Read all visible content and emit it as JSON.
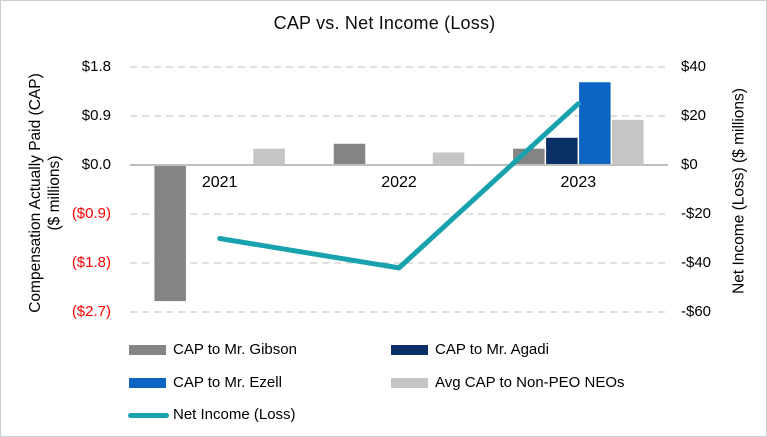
{
  "title": "CAP vs. Net Income (Loss)",
  "left_axis": {
    "title_line1": "Compensation Actually Paid (CAP)",
    "title_line2": "($ millions)",
    "ticks": [
      {
        "label": "$1.8",
        "value": 1.8
      },
      {
        "label": "$0.9",
        "value": 0.9
      },
      {
        "label": "$0.0",
        "value": 0.0
      },
      {
        "label": "($0.9)",
        "value": -0.9
      },
      {
        "label": "($1.8)",
        "value": -1.8
      },
      {
        "label": "($2.7)",
        "value": -2.7
      }
    ]
  },
  "right_axis": {
    "title": "Net Income (Loss) ($ millions)",
    "ticks": [
      {
        "label": "$40",
        "value": 40
      },
      {
        "label": "$20",
        "value": 20
      },
      {
        "label": "$0",
        "value": 0
      },
      {
        "label": "-$20",
        "value": -20
      },
      {
        "label": "-$40",
        "value": -40
      },
      {
        "label": "-$60",
        "value": -60
      }
    ]
  },
  "chart_data": {
    "type": "combo: grouped bar + line, dual y-axes",
    "title": "CAP vs. Net Income (Loss)",
    "categories": [
      "2021",
      "2022",
      "2023"
    ],
    "series": [
      {
        "name": "CAP to Mr. Gibson",
        "type": "bar",
        "axis": "left",
        "color": "#848484",
        "values": [
          -2.5,
          0.39,
          0.3
        ]
      },
      {
        "name": "CAP to Mr. Agadi",
        "type": "bar",
        "axis": "left",
        "color": "#0b3068",
        "values": [
          0,
          0,
          0.5
        ]
      },
      {
        "name": "CAP to Mr. Ezell",
        "type": "bar",
        "axis": "left",
        "color": "#0e64c2",
        "values": [
          0,
          0,
          1.52
        ]
      },
      {
        "name": "Avg CAP to Non-PEO NEOs",
        "type": "bar",
        "axis": "left",
        "color": "#c5c5c5",
        "values": [
          0.3,
          0.23,
          0.83
        ]
      },
      {
        "name": "Net Income (Loss)",
        "type": "line",
        "axis": "right",
        "color": "#18a2ae",
        "values": [
          -30,
          -42,
          25
        ]
      }
    ],
    "left_ylabel": "Compensation Actually Paid (CAP) ($ millions)",
    "right_ylabel": "Net Income (Loss) ($ millions)",
    "left_ylim": [
      -2.7,
      1.8
    ],
    "right_ylim": [
      -60,
      40
    ],
    "grid": "horizontal dashed gridlines; solid zero axis line",
    "legend_position": "bottom, two columns"
  },
  "legend": {
    "columns": [
      [
        0,
        2,
        4
      ],
      [
        1,
        3
      ]
    ]
  },
  "colors": {
    "gridline": "#cdcdcd",
    "axis_line": "#bfbfbf",
    "negative_tick": "#ff0000"
  }
}
